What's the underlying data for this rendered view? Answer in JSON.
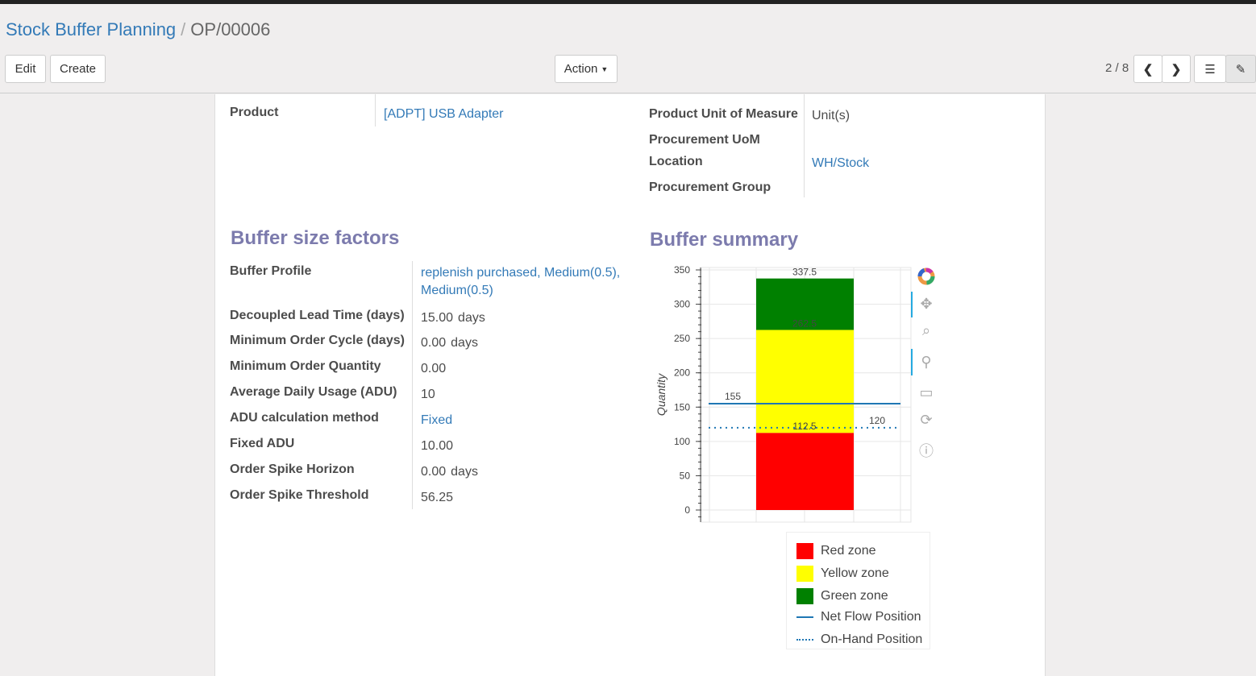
{
  "breadcrumb": {
    "parent": "Stock Buffer Planning",
    "current": "OP/00006"
  },
  "toolbar": {
    "edit": "Edit",
    "create": "Create",
    "action": "Action",
    "pager": "2 / 8"
  },
  "top_fields": {
    "product_label": "Product",
    "product_value": "[ADPT] USB Adapter",
    "uom_label": "Product Unit of Measure",
    "uom_value": "Unit(s)",
    "proc_uom_label": "Procurement UoM",
    "location_label": "Location",
    "location_value": "WH/Stock",
    "proc_group_label": "Procurement Group"
  },
  "factors": {
    "title": "Buffer size factors",
    "rows": [
      {
        "label": "Buffer Profile",
        "value": "replenish purchased, Medium(0.5), Medium(0.5)",
        "link": true
      },
      {
        "label": "Decoupled Lead Time (days)",
        "value": "15.00",
        "unit": "days"
      },
      {
        "label": "Minimum Order Cycle (days)",
        "value": "0.00",
        "unit": "days"
      },
      {
        "label": "Minimum Order Quantity",
        "value": "0.00"
      },
      {
        "label": "Average Daily Usage (ADU)",
        "value": "10"
      },
      {
        "label": "ADU calculation method",
        "value": "Fixed",
        "link": true
      },
      {
        "label": "Fixed ADU",
        "value": "10.00"
      },
      {
        "label": "Order Spike Horizon",
        "value": "0.00",
        "unit": "days"
      },
      {
        "label": "Order Spike Threshold",
        "value": "56.25"
      }
    ]
  },
  "summary": {
    "title": "Buffer summary"
  },
  "chart_data": {
    "type": "bar",
    "stacked": true,
    "ylabel": "Quantity",
    "ylim": [
      0,
      350
    ],
    "yticks": [
      0,
      50,
      100,
      150,
      200,
      250,
      300,
      350
    ],
    "grid": true,
    "series": [
      {
        "name": "Red zone",
        "from": 0,
        "to": 112.5,
        "color": "#ff0000",
        "label": "112.5"
      },
      {
        "name": "Yellow zone",
        "from": 112.5,
        "to": 262.5,
        "color": "#ffff00",
        "label": "262.5"
      },
      {
        "name": "Green zone",
        "from": 262.5,
        "to": 337.5,
        "color": "#008000",
        "label": "337.5"
      }
    ],
    "lines": [
      {
        "name": "Net Flow Position",
        "value": 155,
        "label": "155",
        "style": "solid",
        "color": "#1f77b4"
      },
      {
        "name": "On-Hand Position",
        "value": 120,
        "label": "120",
        "style": "dotted",
        "color": "#1f77b4"
      }
    ],
    "legend": "bottom-right"
  },
  "chart_tools": [
    "bokeh-logo-icon",
    "pan-icon",
    "box-zoom-icon",
    "wheel-zoom-icon",
    "save-icon",
    "reset-icon",
    "help-icon"
  ]
}
